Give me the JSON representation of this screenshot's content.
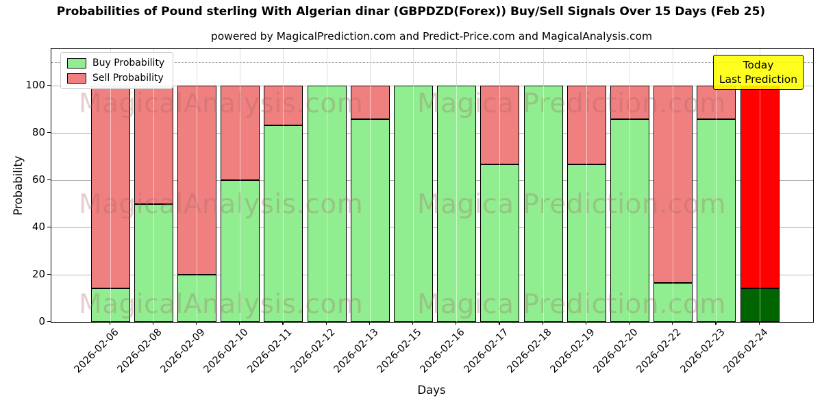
{
  "title": "Probabilities of Pound sterling With Algerian dinar (GBPDZD(Forex)) Buy/Sell Signals Over 15 Days (Feb 25)",
  "subtitle": "powered by MagicalPrediction.com and Predict-Price.com and MagicalAnalysis.com",
  "axes": {
    "xlabel": "Days",
    "ylabel": "Probability",
    "yticks": [
      0,
      20,
      40,
      60,
      80,
      100
    ],
    "ylim": [
      0,
      115.7
    ],
    "dashed_line_y": 110,
    "grid": true
  },
  "legend": {
    "position": "upper left",
    "items": [
      {
        "label": "Buy Probability",
        "color": "#90EE90"
      },
      {
        "label": "Sell Probability",
        "color": "#F08080"
      }
    ]
  },
  "annotation": {
    "line1": "Today",
    "line2": "Last Prediction",
    "bg_color": "#FFFF00"
  },
  "watermarks": {
    "left_text": "MagicalAnalysis.com",
    "right_text": "Magica Prediction.com"
  },
  "chart_data": {
    "type": "bar",
    "stacked": true,
    "categories": [
      "2026-02-06",
      "2026-02-08",
      "2026-02-09",
      "2026-02-10",
      "2026-02-11",
      "2026-02-12",
      "2026-02-13",
      "2026-02-15",
      "2026-02-16",
      "2026-02-17",
      "2026-02-18",
      "2026-02-19",
      "2026-02-20",
      "2026-02-22",
      "2026-02-23",
      "2026-02-24"
    ],
    "series": [
      {
        "name": "Buy Probability",
        "color": "#90EE90",
        "values": [
          14.29,
          50,
          20,
          60,
          83.33,
          100,
          85.71,
          100,
          100,
          66.67,
          100,
          66.67,
          85.71,
          16.67,
          85.71,
          14.29
        ]
      },
      {
        "name": "Sell Probability",
        "color": "#F08080",
        "values": [
          85.71,
          50,
          80,
          40,
          16.67,
          0,
          14.29,
          0,
          0,
          33.33,
          0,
          33.33,
          14.29,
          83.33,
          14.29,
          85.71
        ]
      }
    ],
    "today_bar": {
      "index": 15,
      "buy_color": "#006400",
      "sell_color": "#FF0000"
    },
    "bar_edge_color": "#000000"
  }
}
